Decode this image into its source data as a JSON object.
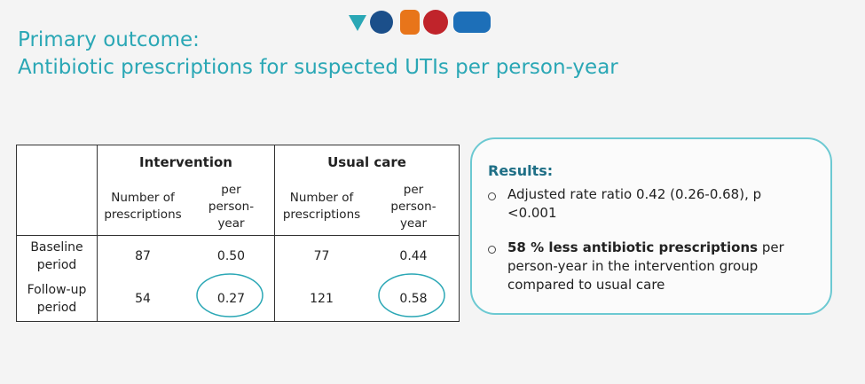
{
  "title": {
    "line1": "Primary outcome:",
    "line2": "Antibiotic prescriptions for suspected UTIs per person-year"
  },
  "table": {
    "groups": [
      "Intervention",
      "Usual care"
    ],
    "subheaders": [
      "Number of prescriptions",
      "per person-year",
      "Number of prescriptions",
      "per person-year"
    ],
    "rows": [
      [
        "Baseline period",
        "87",
        "0.50",
        "77",
        "0.44"
      ],
      [
        "Follow-up period",
        "54",
        "0.27",
        "121",
        "0.58"
      ]
    ]
  },
  "results": {
    "heading": "Results:",
    "item1": "Adjusted rate ratio 0.42 (0.26-0.68), p <0.001",
    "item2_bold": "58 % less antibiotic prescriptions",
    "item2_rest": " per person-year in the intervention group compared to usual care"
  }
}
